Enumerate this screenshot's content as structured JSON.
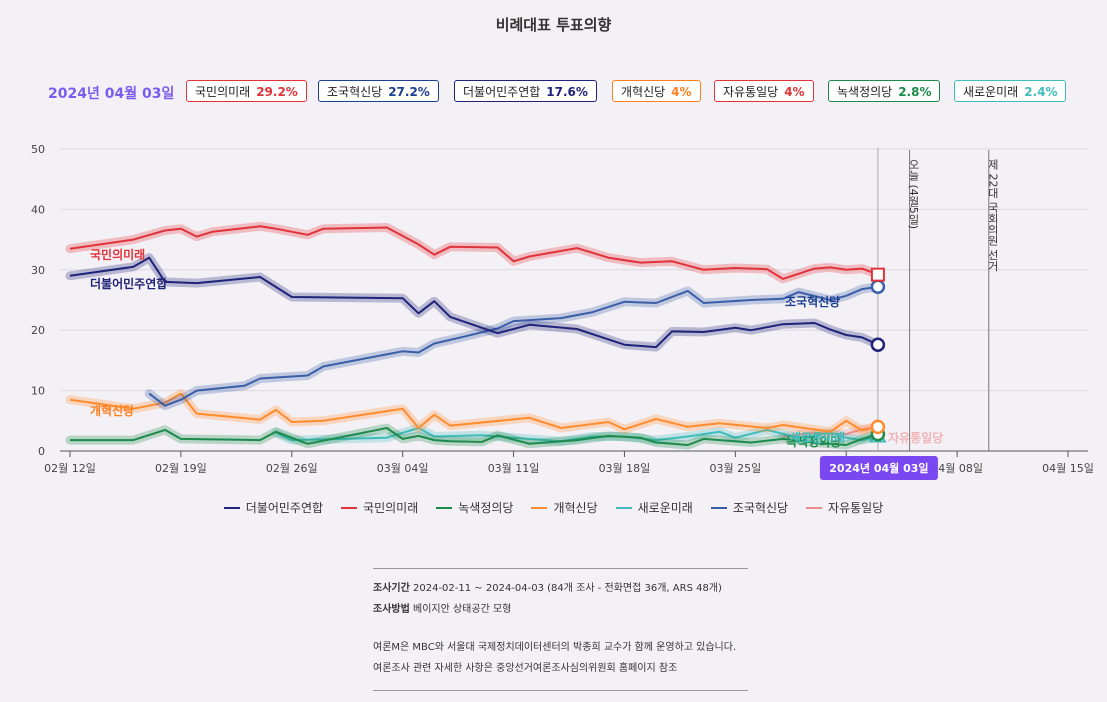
{
  "header": {
    "title": "비례대표 투표의향",
    "date_label": "2024년 04월 03일"
  },
  "badges": [
    {
      "name": "국민의미래",
      "value": "29.2%",
      "color": "#e0333a"
    },
    {
      "name": "조국혁신당",
      "value": "27.2%",
      "color": "#1c3f8f"
    },
    {
      "name": "더불어민주연합",
      "value": "17.6%",
      "color": "#1f237a"
    },
    {
      "name": "개혁신당",
      "value": "4%",
      "color": "#ff7f1e"
    },
    {
      "name": "자유통일당",
      "value": "4%",
      "color": "#e0333a"
    },
    {
      "name": "녹색정의당",
      "value": "2.8%",
      "color": "#1c8a4a"
    },
    {
      "name": "새로운미래",
      "value": "2.4%",
      "color": "#3fbcbc"
    }
  ],
  "chart_data": {
    "type": "line",
    "ylim": [
      0,
      50
    ],
    "y_ticks": [
      "0",
      "10",
      "20",
      "30",
      "40",
      "50"
    ],
    "x_ticks": [
      {
        "date": "2024-02-12",
        "label": "02월 12일"
      },
      {
        "date": "2024-02-19",
        "label": "02월 19일"
      },
      {
        "date": "2024-02-26",
        "label": "02월 26일"
      },
      {
        "date": "2024-03-04",
        "label": "03월 04일"
      },
      {
        "date": "2024-03-11",
        "label": "03월 11일"
      },
      {
        "date": "2024-03-18",
        "label": "03월 18일"
      },
      {
        "date": "2024-03-25",
        "label": "03월 25일"
      },
      {
        "date": "2024-04-01",
        "label": "04월 01일"
      },
      {
        "date": "2024-04-08",
        "label": "04월 08일"
      },
      {
        "date": "2024-04-15",
        "label": "04월 15일"
      }
    ],
    "xlim": [
      "2024-02-12",
      "2024-04-15"
    ],
    "markers": [
      {
        "date": "2024-04-05",
        "label": "오늘 (4월5일)"
      },
      {
        "date": "2024-04-10",
        "label": "제 22대 국회의원 선거"
      }
    ],
    "hover": {
      "date": "2024-04-03",
      "label": "2024년 04월 03일"
    },
    "grid": true,
    "series": [
      {
        "name": "국민의미래",
        "color": "#e0333a",
        "label": "국민의미래",
        "end_marker": "square",
        "points": [
          [
            "2024-02-12",
            33.5
          ],
          [
            "2024-02-16",
            35.0
          ],
          [
            "2024-02-18",
            36.5
          ],
          [
            "2024-02-19",
            36.8
          ],
          [
            "2024-02-20",
            35.5
          ],
          [
            "2024-02-21",
            36.3
          ],
          [
            "2024-02-24",
            37.2
          ],
          [
            "2024-02-25",
            36.8
          ],
          [
            "2024-02-27",
            35.8
          ],
          [
            "2024-02-28",
            36.8
          ],
          [
            "2024-03-03",
            37.0
          ],
          [
            "2024-03-05",
            34.2
          ],
          [
            "2024-03-06",
            32.5
          ],
          [
            "2024-03-07",
            33.8
          ],
          [
            "2024-03-10",
            33.7
          ],
          [
            "2024-03-11",
            31.4
          ],
          [
            "2024-03-12",
            32.2
          ],
          [
            "2024-03-15",
            33.6
          ],
          [
            "2024-03-17",
            32.0
          ],
          [
            "2024-03-19",
            31.2
          ],
          [
            "2024-03-21",
            31.4
          ],
          [
            "2024-03-23",
            30.0
          ],
          [
            "2024-03-25",
            30.3
          ],
          [
            "2024-03-27",
            30.1
          ],
          [
            "2024-03-28",
            28.5
          ],
          [
            "2024-03-30",
            30.2
          ],
          [
            "2024-03-31",
            30.4
          ],
          [
            "2024-04-01",
            30.0
          ],
          [
            "2024-04-02",
            30.2
          ],
          [
            "2024-04-03",
            29.2
          ]
        ]
      },
      {
        "name": "조국혁신당",
        "color": "#3a5fa8",
        "label": "조국혁신당",
        "end_marker": "circle",
        "points": [
          [
            "2024-02-17",
            9.5
          ],
          [
            "2024-02-18",
            7.5
          ],
          [
            "2024-02-19",
            8.5
          ],
          [
            "2024-02-20",
            10.0
          ],
          [
            "2024-02-23",
            10.8
          ],
          [
            "2024-02-24",
            12.0
          ],
          [
            "2024-02-27",
            12.5
          ],
          [
            "2024-02-28",
            14.0
          ],
          [
            "2024-03-04",
            16.5
          ],
          [
            "2024-03-05",
            16.3
          ],
          [
            "2024-03-06",
            17.8
          ],
          [
            "2024-03-08",
            19.0
          ],
          [
            "2024-03-10",
            20.3
          ],
          [
            "2024-03-11",
            21.5
          ],
          [
            "2024-03-14",
            22.0
          ],
          [
            "2024-03-16",
            23.0
          ],
          [
            "2024-03-18",
            24.7
          ],
          [
            "2024-03-20",
            24.5
          ],
          [
            "2024-03-22",
            26.5
          ],
          [
            "2024-03-23",
            24.5
          ],
          [
            "2024-03-26",
            25.0
          ],
          [
            "2024-03-28",
            25.2
          ],
          [
            "2024-03-29",
            26.3
          ],
          [
            "2024-03-31",
            25.0
          ],
          [
            "2024-04-01",
            25.7
          ],
          [
            "2024-04-02",
            26.8
          ],
          [
            "2024-04-03",
            27.2
          ]
        ]
      },
      {
        "name": "더불어민주연합",
        "color": "#1f237a",
        "label": "더불어민주연합",
        "end_marker": "circle",
        "points": [
          [
            "2024-02-12",
            29.0
          ],
          [
            "2024-02-16",
            30.5
          ],
          [
            "2024-02-17",
            32.0
          ],
          [
            "2024-02-18",
            28.0
          ],
          [
            "2024-02-20",
            27.8
          ],
          [
            "2024-02-24",
            28.8
          ],
          [
            "2024-02-26",
            25.5
          ],
          [
            "2024-03-04",
            25.3
          ],
          [
            "2024-03-05",
            22.8
          ],
          [
            "2024-03-06",
            24.8
          ],
          [
            "2024-03-07",
            22.2
          ],
          [
            "2024-03-10",
            19.5
          ],
          [
            "2024-03-12",
            20.9
          ],
          [
            "2024-03-15",
            20.2
          ],
          [
            "2024-03-18",
            17.6
          ],
          [
            "2024-03-20",
            17.2
          ],
          [
            "2024-03-21",
            19.8
          ],
          [
            "2024-03-23",
            19.7
          ],
          [
            "2024-03-25",
            20.4
          ],
          [
            "2024-03-26",
            20.0
          ],
          [
            "2024-03-28",
            21.0
          ],
          [
            "2024-03-30",
            21.2
          ],
          [
            "2024-03-31",
            20.1
          ],
          [
            "2024-04-01",
            19.2
          ],
          [
            "2024-04-02",
            18.8
          ],
          [
            "2024-04-03",
            17.6
          ]
        ]
      },
      {
        "name": "개혁신당",
        "color": "#ff8c2e",
        "label": "개혁신당",
        "end_marker": "circle",
        "points": [
          [
            "2024-02-12",
            8.5
          ],
          [
            "2024-02-16",
            7.0
          ],
          [
            "2024-02-18",
            8.0
          ],
          [
            "2024-02-19",
            9.5
          ],
          [
            "2024-02-20",
            6.2
          ],
          [
            "2024-02-24",
            5.2
          ],
          [
            "2024-02-25",
            6.8
          ],
          [
            "2024-02-26",
            4.8
          ],
          [
            "2024-02-28",
            5.0
          ],
          [
            "2024-03-04",
            7.0
          ],
          [
            "2024-03-05",
            3.8
          ],
          [
            "2024-03-06",
            6.0
          ],
          [
            "2024-03-07",
            4.2
          ],
          [
            "2024-03-12",
            5.5
          ],
          [
            "2024-03-14",
            3.8
          ],
          [
            "2024-03-17",
            4.8
          ],
          [
            "2024-03-18",
            3.6
          ],
          [
            "2024-03-20",
            5.3
          ],
          [
            "2024-03-22",
            4.0
          ],
          [
            "2024-03-24",
            4.6
          ],
          [
            "2024-03-27",
            3.8
          ],
          [
            "2024-03-28",
            4.3
          ],
          [
            "2024-03-31",
            3.2
          ],
          [
            "2024-04-01",
            5.0
          ],
          [
            "2024-04-02",
            3.4
          ],
          [
            "2024-04-03",
            4.0
          ]
        ]
      },
      {
        "name": "자유통일당",
        "color": "#f08a8a",
        "label": "자유통일당",
        "end_marker": "diamond",
        "points": [
          [
            "2024-03-28",
            2.4
          ],
          [
            "2024-03-30",
            3.0
          ],
          [
            "2024-04-01",
            2.8
          ],
          [
            "2024-04-02",
            3.6
          ],
          [
            "2024-04-03",
            4.0
          ]
        ]
      },
      {
        "name": "녹색정의당",
        "color": "#1c8a4a",
        "label": "녹색정의당",
        "end_marker": "circle",
        "points": [
          [
            "2024-02-12",
            1.8
          ],
          [
            "2024-02-16",
            1.8
          ],
          [
            "2024-02-18",
            3.5
          ],
          [
            "2024-02-19",
            2.0
          ],
          [
            "2024-02-24",
            1.8
          ],
          [
            "2024-02-25",
            3.2
          ],
          [
            "2024-02-27",
            1.2
          ],
          [
            "2024-03-03",
            3.8
          ],
          [
            "2024-03-04",
            2.0
          ],
          [
            "2024-03-05",
            2.5
          ],
          [
            "2024-03-06",
            1.8
          ],
          [
            "2024-03-07",
            1.6
          ],
          [
            "2024-03-09",
            1.5
          ],
          [
            "2024-03-10",
            2.6
          ],
          [
            "2024-03-12",
            1.2
          ],
          [
            "2024-03-13",
            1.4
          ],
          [
            "2024-03-15",
            1.8
          ],
          [
            "2024-03-17",
            2.5
          ],
          [
            "2024-03-19",
            2.2
          ],
          [
            "2024-03-20",
            1.4
          ],
          [
            "2024-03-22",
            1.0
          ],
          [
            "2024-03-23",
            2.0
          ],
          [
            "2024-03-26",
            1.4
          ],
          [
            "2024-03-28",
            2.0
          ],
          [
            "2024-03-30",
            1.4
          ],
          [
            "2024-04-01",
            1.0
          ],
          [
            "2024-04-02",
            2.0
          ],
          [
            "2024-04-03",
            2.8
          ]
        ]
      },
      {
        "name": "새로운미래",
        "color": "#3fbcbc",
        "label": "새로운미래",
        "end_marker": "triangle",
        "points": [
          [
            "2024-02-25",
            3.0
          ],
          [
            "2024-02-26",
            1.8
          ],
          [
            "2024-03-03",
            2.2
          ],
          [
            "2024-03-05",
            3.8
          ],
          [
            "2024-03-06",
            2.4
          ],
          [
            "2024-03-09",
            2.6
          ],
          [
            "2024-03-11",
            2.2
          ],
          [
            "2024-03-14",
            1.6
          ],
          [
            "2024-03-16",
            2.4
          ],
          [
            "2024-03-18",
            2.4
          ],
          [
            "2024-03-20",
            1.8
          ],
          [
            "2024-03-22",
            2.4
          ],
          [
            "2024-03-24",
            3.2
          ],
          [
            "2024-03-25",
            2.2
          ],
          [
            "2024-03-27",
            3.5
          ],
          [
            "2024-03-29",
            2.2
          ],
          [
            "2024-03-31",
            3.0
          ],
          [
            "2024-04-01",
            2.2
          ],
          [
            "2024-04-02",
            1.8
          ],
          [
            "2024-04-03",
            2.4
          ]
        ]
      }
    ]
  },
  "legend": [
    {
      "name": "더불어민주연합",
      "color": "#1f237a"
    },
    {
      "name": "국민의미래",
      "color": "#e0333a"
    },
    {
      "name": "녹색정의당",
      "color": "#1c8a4a"
    },
    {
      "name": "개혁신당",
      "color": "#ff8c2e"
    },
    {
      "name": "새로운미래",
      "color": "#3fbcbc"
    },
    {
      "name": "조국혁신당",
      "color": "#3a5fa8"
    },
    {
      "name": "자유통일당",
      "color": "#f08a8a"
    }
  ],
  "footer": {
    "period_label": "조사기간",
    "period_value": "2024-02-11 ~ 2024-04-03 (84개 조사 - 전화면접 36개, ARS 48개)",
    "method_label": "조사방법",
    "method_value": "베이지안 상태공간 모형",
    "note1": "여론M은 MBC와 서울대 국제정치데이터센터의 박종희 교수가 함께 운영하고 있습니다.",
    "note2": "여론조사 관련 자세한 사항은 중앙선거여론조사심의위원회 홈페이지 참조"
  }
}
